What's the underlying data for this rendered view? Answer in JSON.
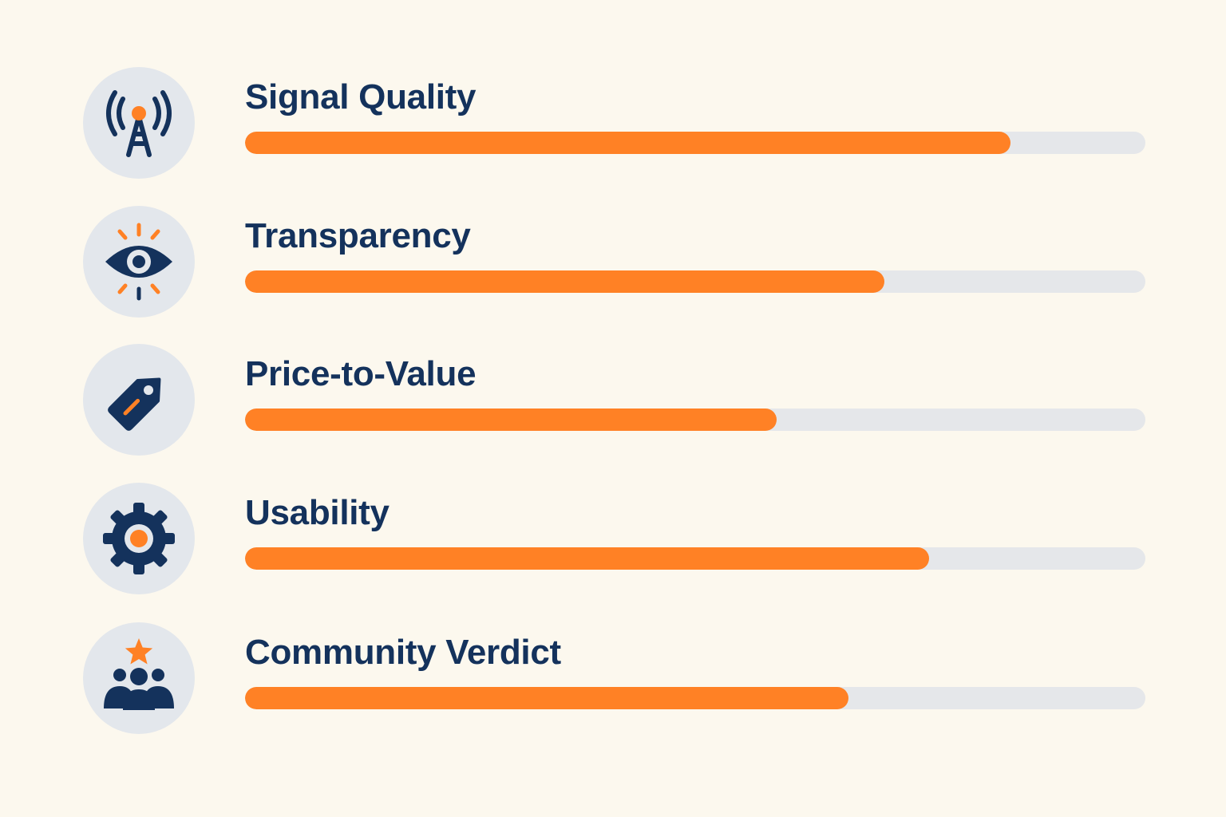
{
  "colors": {
    "background": "#FCF8EE",
    "accent": "#FF8125",
    "navy": "#14325C",
    "track": "#E5E7EA",
    "icon_bg": "#E3E7EC"
  },
  "chart_data": {
    "type": "bar",
    "orientation": "horizontal",
    "categories": [
      "Signal Quality",
      "Transparency",
      "Price-to-Value",
      "Usability",
      "Community Verdict"
    ],
    "values": [
      85,
      71,
      59,
      76,
      67
    ],
    "icons": [
      "signal-tower-icon",
      "eye-icon",
      "price-tag-icon",
      "gear-icon",
      "community-star-icon"
    ],
    "xlim": [
      0,
      100
    ],
    "grid": false,
    "legend": "none"
  }
}
